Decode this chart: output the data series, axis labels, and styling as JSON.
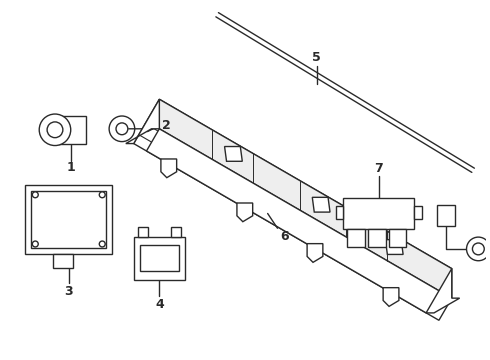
{
  "bg_color": "#ffffff",
  "lc": "#2a2a2a",
  "lw": 1.0,
  "figsize": [
    4.9,
    3.6
  ],
  "dpi": 100
}
